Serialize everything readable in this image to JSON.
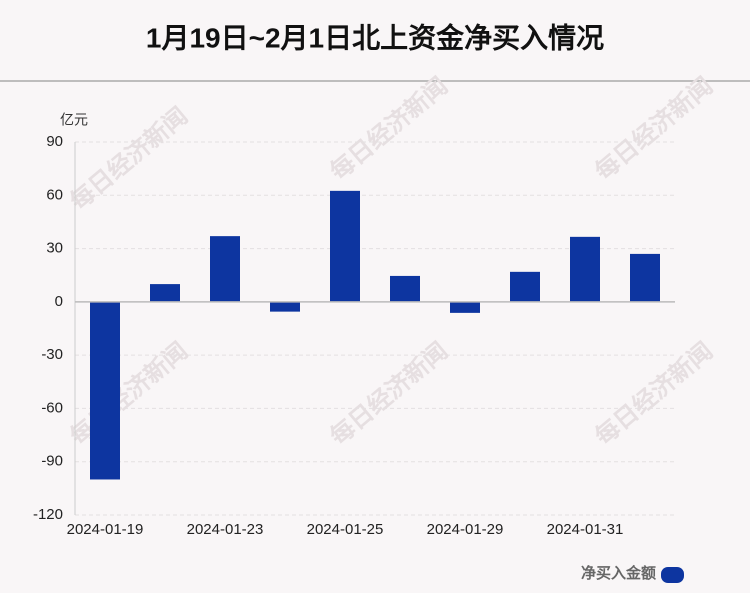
{
  "chart_data": {
    "type": "bar",
    "title": "1月19日~2月1日北上资金净买入情况",
    "y_unit": "亿元",
    "watermark": "每日经济新闻",
    "categories": [
      "2024-01-19",
      null,
      "2024-01-23",
      null,
      "2024-01-25",
      null,
      "2024-01-29",
      null,
      "2024-01-31",
      null
    ],
    "series": [
      {
        "name": "净买入金额",
        "color": "#0d35a0",
        "values": [
          -100,
          10,
          37,
          -5.5,
          62.5,
          14.6,
          -6.2,
          16.9,
          36.6,
          27
        ]
      }
    ],
    "ylim": [
      -120,
      90
    ],
    "yticks": [
      -120,
      -90,
      -60,
      -30,
      0,
      30,
      60,
      90
    ],
    "grid": true,
    "legend": "bottom-right"
  }
}
